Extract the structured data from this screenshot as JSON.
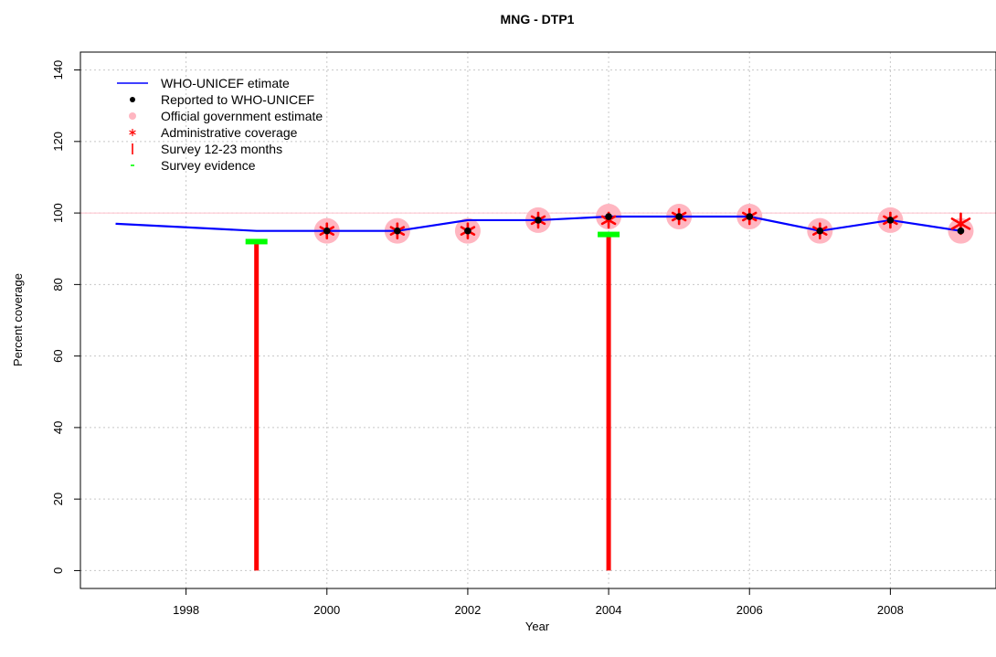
{
  "chart_data": {
    "type": "line",
    "title": "MNG  -  DTP1",
    "xlabel": "Year",
    "ylabel": "Percent coverage",
    "xlim": [
      1996.5,
      2009.5
    ],
    "ylim": [
      -5,
      145
    ],
    "x_ticks": [
      1998,
      2000,
      2002,
      2004,
      2006,
      2008
    ],
    "y_ticks": [
      0,
      20,
      40,
      60,
      80,
      100,
      120,
      140
    ],
    "grid": true,
    "reference_line": 100,
    "legend_position": "top-left",
    "series": [
      {
        "name": "WHO-UNICEF etimate",
        "kind": "line",
        "color": "#0000ff",
        "x": [
          1997,
          1998,
          1999,
          2000,
          2001,
          2002,
          2003,
          2004,
          2005,
          2006,
          2007,
          2008,
          2009
        ],
        "y": [
          97,
          96,
          95,
          95,
          95,
          98,
          98,
          99,
          99,
          99,
          95,
          98,
          95
        ]
      },
      {
        "name": "Reported to WHO-UNICEF",
        "kind": "point",
        "color": "#000000",
        "x": [
          2000,
          2001,
          2002,
          2003,
          2004,
          2005,
          2006,
          2007,
          2008,
          2009
        ],
        "y": [
          95,
          95,
          95,
          98,
          99,
          99,
          99,
          95,
          98,
          95
        ]
      },
      {
        "name": "Official government estimate",
        "kind": "circle",
        "color": "#ffb6c1",
        "x": [
          2000,
          2001,
          2002,
          2003,
          2004,
          2005,
          2006,
          2007,
          2008,
          2009
        ],
        "y": [
          95,
          95,
          95,
          98,
          99,
          99,
          99,
          95,
          98,
          95
        ]
      },
      {
        "name": "Administrative coverage",
        "kind": "star",
        "color": "#ff0000",
        "x": [
          2000,
          2001,
          2002,
          2003,
          2004,
          2005,
          2006,
          2007,
          2008,
          2009
        ],
        "y": [
          95,
          95,
          95,
          98,
          98,
          99,
          99,
          95,
          98,
          97
        ]
      },
      {
        "name": "Survey 12-23 months",
        "kind": "bar",
        "color": "#ff0000",
        "x": [
          1999,
          2004
        ],
        "y": [
          92,
          94
        ]
      },
      {
        "name": "Survey evidence",
        "kind": "dash",
        "color": "#00ff00",
        "x": [
          1999,
          2004
        ],
        "y": [
          92,
          94
        ]
      }
    ]
  }
}
